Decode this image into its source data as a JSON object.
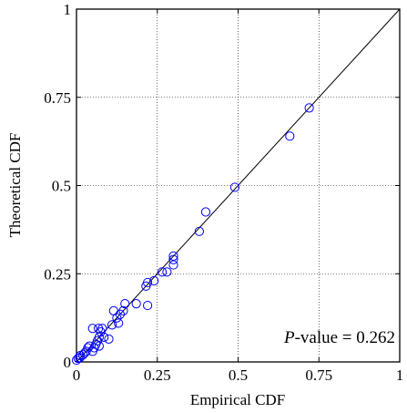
{
  "chart_data": {
    "type": "scatter",
    "xlabel": "Empirical CDF",
    "ylabel": "Theoretical CDF",
    "xlim": [
      0,
      1
    ],
    "ylim": [
      0,
      1
    ],
    "x_ticks": [
      0,
      0.25,
      0.5,
      0.75,
      1
    ],
    "x_tick_labels": [
      "0",
      "0.25",
      "0.5",
      "0.75",
      "1"
    ],
    "y_ticks": [
      0,
      0.25,
      0.5,
      0.75,
      1
    ],
    "y_tick_labels": [
      "0",
      "0.25",
      "0.5",
      "0.75",
      "1"
    ],
    "grid": true,
    "reference_line": {
      "from": [
        0,
        0
      ],
      "to": [
        1,
        1
      ],
      "color": "#000000"
    },
    "annotation": {
      "p_label": "P",
      "rest": "-value = 0.262"
    },
    "series": [
      {
        "marker": "open-circle",
        "color": "#0000ff",
        "points": [
          [
            0.0,
            0.005
          ],
          [
            0.005,
            0.01
          ],
          [
            0.01,
            0.012
          ],
          [
            0.012,
            0.018
          ],
          [
            0.02,
            0.02
          ],
          [
            0.025,
            0.025
          ],
          [
            0.03,
            0.03
          ],
          [
            0.035,
            0.04
          ],
          [
            0.04,
            0.045
          ],
          [
            0.05,
            0.03
          ],
          [
            0.055,
            0.04
          ],
          [
            0.05,
            0.095
          ],
          [
            0.06,
            0.05
          ],
          [
            0.065,
            0.06
          ],
          [
            0.07,
            0.07
          ],
          [
            0.07,
            0.045
          ],
          [
            0.075,
            0.085
          ],
          [
            0.068,
            0.095
          ],
          [
            0.08,
            0.095
          ],
          [
            0.085,
            0.07
          ],
          [
            0.1,
            0.065
          ],
          [
            0.11,
            0.105
          ],
          [
            0.115,
            0.145
          ],
          [
            0.125,
            0.125
          ],
          [
            0.13,
            0.11
          ],
          [
            0.135,
            0.135
          ],
          [
            0.145,
            0.145
          ],
          [
            0.15,
            0.165
          ],
          [
            0.185,
            0.165
          ],
          [
            0.22,
            0.16
          ],
          [
            0.215,
            0.215
          ],
          [
            0.22,
            0.225
          ],
          [
            0.24,
            0.23
          ],
          [
            0.265,
            0.255
          ],
          [
            0.28,
            0.255
          ],
          [
            0.3,
            0.275
          ],
          [
            0.3,
            0.29
          ],
          [
            0.3,
            0.3
          ],
          [
            0.38,
            0.37
          ],
          [
            0.4,
            0.425
          ],
          [
            0.49,
            0.495
          ],
          [
            0.66,
            0.64
          ],
          [
            0.72,
            0.72
          ]
        ]
      }
    ]
  }
}
